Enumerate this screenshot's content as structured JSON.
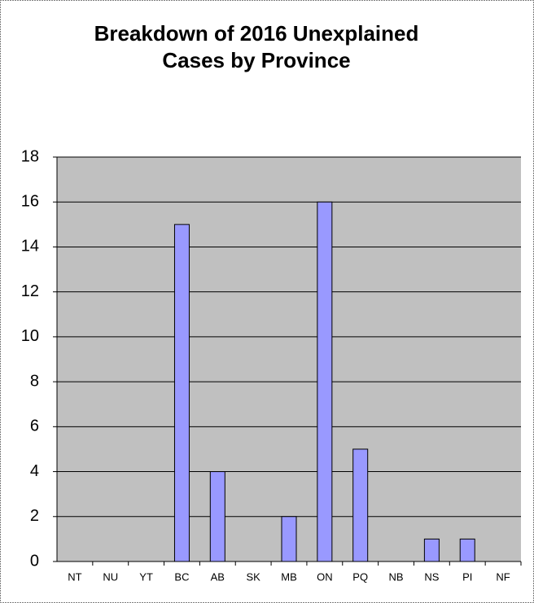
{
  "chart_data": {
    "type": "bar",
    "title": [
      "Breakdown of 2016 Unexplained",
      "Cases by Province"
    ],
    "categories": [
      "NT",
      "NU",
      "YT",
      "BC",
      "AB",
      "SK",
      "MB",
      "ON",
      "PQ",
      "NB",
      "NS",
      "PI",
      "NF"
    ],
    "values": [
      0,
      0,
      0,
      15,
      4,
      0,
      2,
      16,
      5,
      0,
      1,
      1,
      0
    ],
    "color": "#9999ff",
    "ylim": [
      0,
      18
    ],
    "yticks": [
      0,
      2,
      4,
      6,
      8,
      10,
      12,
      14,
      16,
      18
    ],
    "grid": true
  }
}
